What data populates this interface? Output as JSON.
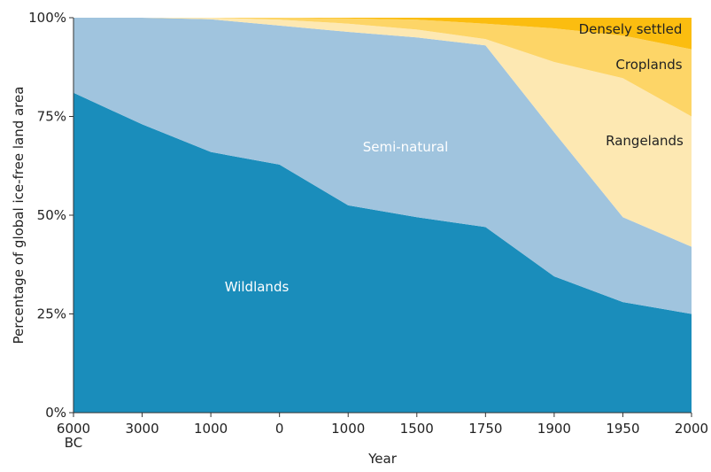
{
  "chart_data": {
    "type": "stacked_area",
    "x_label": "Year",
    "y_label": "Percentage of global ice-free land area",
    "categories": [
      "6000 BC",
      "3000",
      "1000",
      "0",
      "1000",
      "1500",
      "1750",
      "1900",
      "1950",
      "2000"
    ],
    "ylim": [
      0,
      100
    ],
    "yticks": [
      {
        "value": 0,
        "label": "0%"
      },
      {
        "value": 25,
        "label": "25%"
      },
      {
        "value": 50,
        "label": "50%"
      },
      {
        "value": 75,
        "label": "75%"
      },
      {
        "value": 100,
        "label": "100%"
      }
    ],
    "series": [
      {
        "name": "Wildlands",
        "color": "#1a8dbb",
        "values": [
          81,
          73,
          66,
          62.8,
          52.5,
          49.5,
          47,
          34.5,
          28,
          25
        ]
      },
      {
        "name": "Semi-natural",
        "color": "#a0c4de",
        "values": [
          19,
          27,
          33.6,
          35.2,
          43.9,
          45.5,
          46,
          36.5,
          21.5,
          17
        ]
      },
      {
        "name": "Rangelands",
        "color": "#fde8b2",
        "values": [
          0,
          0,
          0.4,
          1.5,
          2.1,
          2,
          1.6,
          17.8,
          35.2,
          33
        ]
      },
      {
        "name": "Croplands",
        "color": "#fdd567",
        "values": [
          0,
          0,
          0,
          0.5,
          1.3,
          2.5,
          3.9,
          8.5,
          10.8,
          17
        ]
      },
      {
        "name": "Densely settled",
        "color": "#fbbd10",
        "values": [
          0,
          0,
          0,
          0,
          0.2,
          0.5,
          1.5,
          2.7,
          4.5,
          8
        ]
      }
    ]
  }
}
